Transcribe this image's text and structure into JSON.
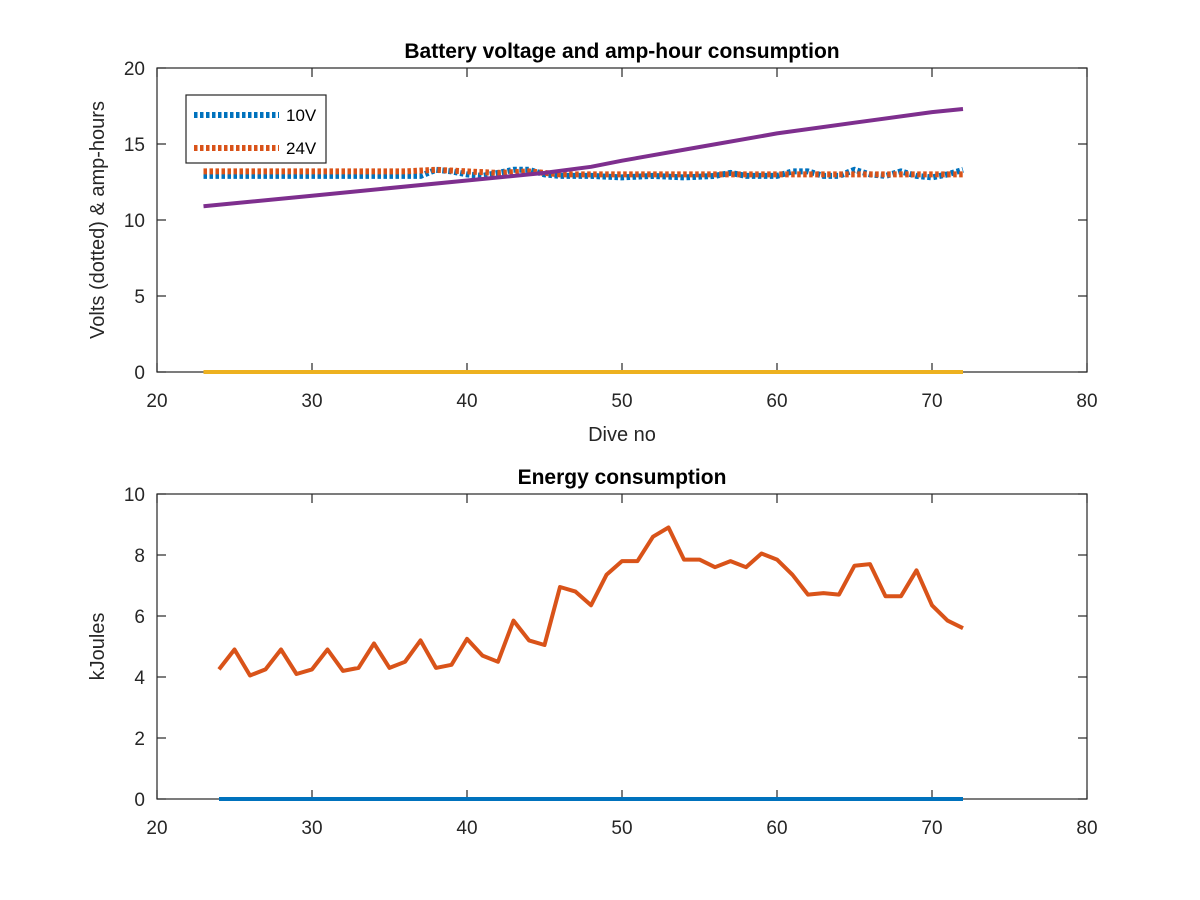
{
  "chart_data": [
    {
      "type": "line",
      "title": "Battery voltage and amp-hour consumption",
      "xlabel": "Dive no",
      "ylabel": "Volts (dotted) & amp-hours",
      "xlim": [
        20,
        80
      ],
      "ylim": [
        0,
        20
      ],
      "xticks": [
        20,
        30,
        40,
        50,
        60,
        70,
        80
      ],
      "yticks": [
        0,
        5,
        10,
        15,
        20
      ],
      "grid": false,
      "legend": {
        "location": "top-left",
        "entries": [
          {
            "label": "10V",
            "color": "#0072BD",
            "style": "dotted"
          },
          {
            "label": "24V",
            "color": "#D95319",
            "style": "dotted"
          }
        ]
      },
      "series": [
        {
          "name": "10V",
          "color": "#0072BD",
          "style": "dotted",
          "x": [
            23,
            26,
            30,
            34,
            37,
            38,
            39,
            40,
            41,
            42,
            43,
            44,
            45,
            46,
            48,
            50,
            52,
            54,
            56,
            57,
            58,
            60,
            61,
            62,
            63,
            64,
            65,
            66,
            67,
            68,
            69,
            70,
            71,
            72
          ],
          "y": [
            12.9,
            12.9,
            12.9,
            12.9,
            12.9,
            13.3,
            13.2,
            13.0,
            12.9,
            13.1,
            13.3,
            13.3,
            13.0,
            12.9,
            12.9,
            12.8,
            12.9,
            12.8,
            12.9,
            13.1,
            12.9,
            12.9,
            13.2,
            13.2,
            12.9,
            12.9,
            13.3,
            13.0,
            12.9,
            13.2,
            12.9,
            12.8,
            13.0,
            13.3
          ]
        },
        {
          "name": "24V",
          "color": "#D95319",
          "style": "dotted",
          "x": [
            23,
            30,
            36,
            38,
            40,
            42,
            44,
            46,
            48,
            50,
            52,
            54,
            56,
            58,
            60,
            62,
            64,
            66,
            68,
            70,
            72
          ],
          "y": [
            13.2,
            13.2,
            13.2,
            13.3,
            13.2,
            13.1,
            13.2,
            13.0,
            13.0,
            13.0,
            13.0,
            13.0,
            13.0,
            13.0,
            13.0,
            13.0,
            13.0,
            13.0,
            13.0,
            13.0,
            13.0
          ]
        },
        {
          "color": "#7E2F8E",
          "style": "solid",
          "x": [
            23,
            30,
            40,
            45,
            48,
            50,
            55,
            60,
            65,
            70,
            72
          ],
          "y": [
            10.9,
            11.6,
            12.6,
            13.1,
            13.5,
            13.9,
            14.8,
            15.7,
            16.4,
            17.1,
            17.3
          ]
        },
        {
          "color": "#EDB120",
          "style": "solid",
          "x": [
            23,
            72
          ],
          "y": [
            0,
            0
          ]
        }
      ]
    },
    {
      "type": "line",
      "title": "Energy consumption",
      "xlabel": "",
      "ylabel": "kJoules",
      "xlim": [
        20,
        80
      ],
      "ylim": [
        0,
        10
      ],
      "xticks": [
        20,
        30,
        40,
        50,
        60,
        70,
        80
      ],
      "yticks": [
        0,
        2,
        4,
        6,
        8,
        10
      ],
      "grid": false,
      "series": [
        {
          "color": "#D95319",
          "style": "solid",
          "x": [
            24,
            25,
            26,
            27,
            28,
            29,
            30,
            31,
            32,
            33,
            34,
            35,
            36,
            37,
            38,
            39,
            40,
            41,
            42,
            43,
            44,
            45,
            46,
            47,
            48,
            49,
            50,
            51,
            52,
            53,
            54,
            55,
            56,
            57,
            58,
            59,
            60,
            61,
            62,
            63,
            64,
            65,
            66,
            67,
            68,
            69,
            70,
            71,
            72
          ],
          "y": [
            4.25,
            4.9,
            4.05,
            4.25,
            4.9,
            4.1,
            4.25,
            4.9,
            4.2,
            4.3,
            5.1,
            4.3,
            4.5,
            5.2,
            4.3,
            4.4,
            5.25,
            4.7,
            4.5,
            5.85,
            5.2,
            5.05,
            6.95,
            6.8,
            6.35,
            7.35,
            7.8,
            7.8,
            8.6,
            8.9,
            7.85,
            7.85,
            7.6,
            7.8,
            7.6,
            8.05,
            7.85,
            7.35,
            6.7,
            6.75,
            6.7,
            7.65,
            7.7,
            6.65,
            6.65,
            7.5,
            6.35,
            5.85,
            5.6
          ]
        },
        {
          "color": "#0072BD",
          "style": "solid",
          "x": [
            24,
            72
          ],
          "y": [
            0,
            0
          ]
        }
      ]
    }
  ]
}
